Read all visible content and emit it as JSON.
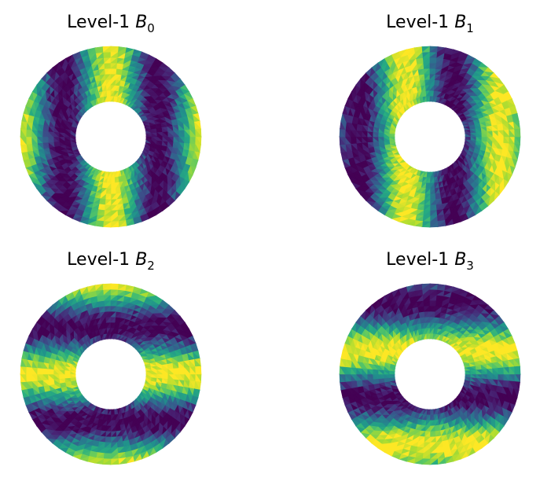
{
  "chart_data": [
    {
      "type": "heatmap",
      "title_prefix": "Level-1",
      "title_symbol": "B",
      "title_subscript": "0",
      "pattern": "vertical-stripes",
      "phase": 0.0,
      "colormap": "viridis",
      "axes": "off",
      "grid": false,
      "legend": "none"
    },
    {
      "type": "heatmap",
      "title_prefix": "Level-1",
      "title_symbol": "B",
      "title_subscript": "1",
      "pattern": "vertical-stripes",
      "phase": 0.25,
      "colormap": "viridis",
      "axes": "off",
      "grid": false,
      "legend": "none"
    },
    {
      "type": "heatmap",
      "title_prefix": "Level-1",
      "title_symbol": "B",
      "title_subscript": "2",
      "pattern": "horizontal-stripes",
      "phase": 0.0,
      "colormap": "viridis",
      "axes": "off",
      "grid": false,
      "legend": "none"
    },
    {
      "type": "heatmap",
      "title_prefix": "Level-1",
      "title_symbol": "B",
      "title_subscript": "3",
      "pattern": "horizontal-stripes",
      "phase": 0.25,
      "colormap": "viridis",
      "axes": "off",
      "grid": false,
      "legend": "none"
    }
  ],
  "colors": {
    "background": "#ffffff",
    "title_text": "#000000"
  }
}
